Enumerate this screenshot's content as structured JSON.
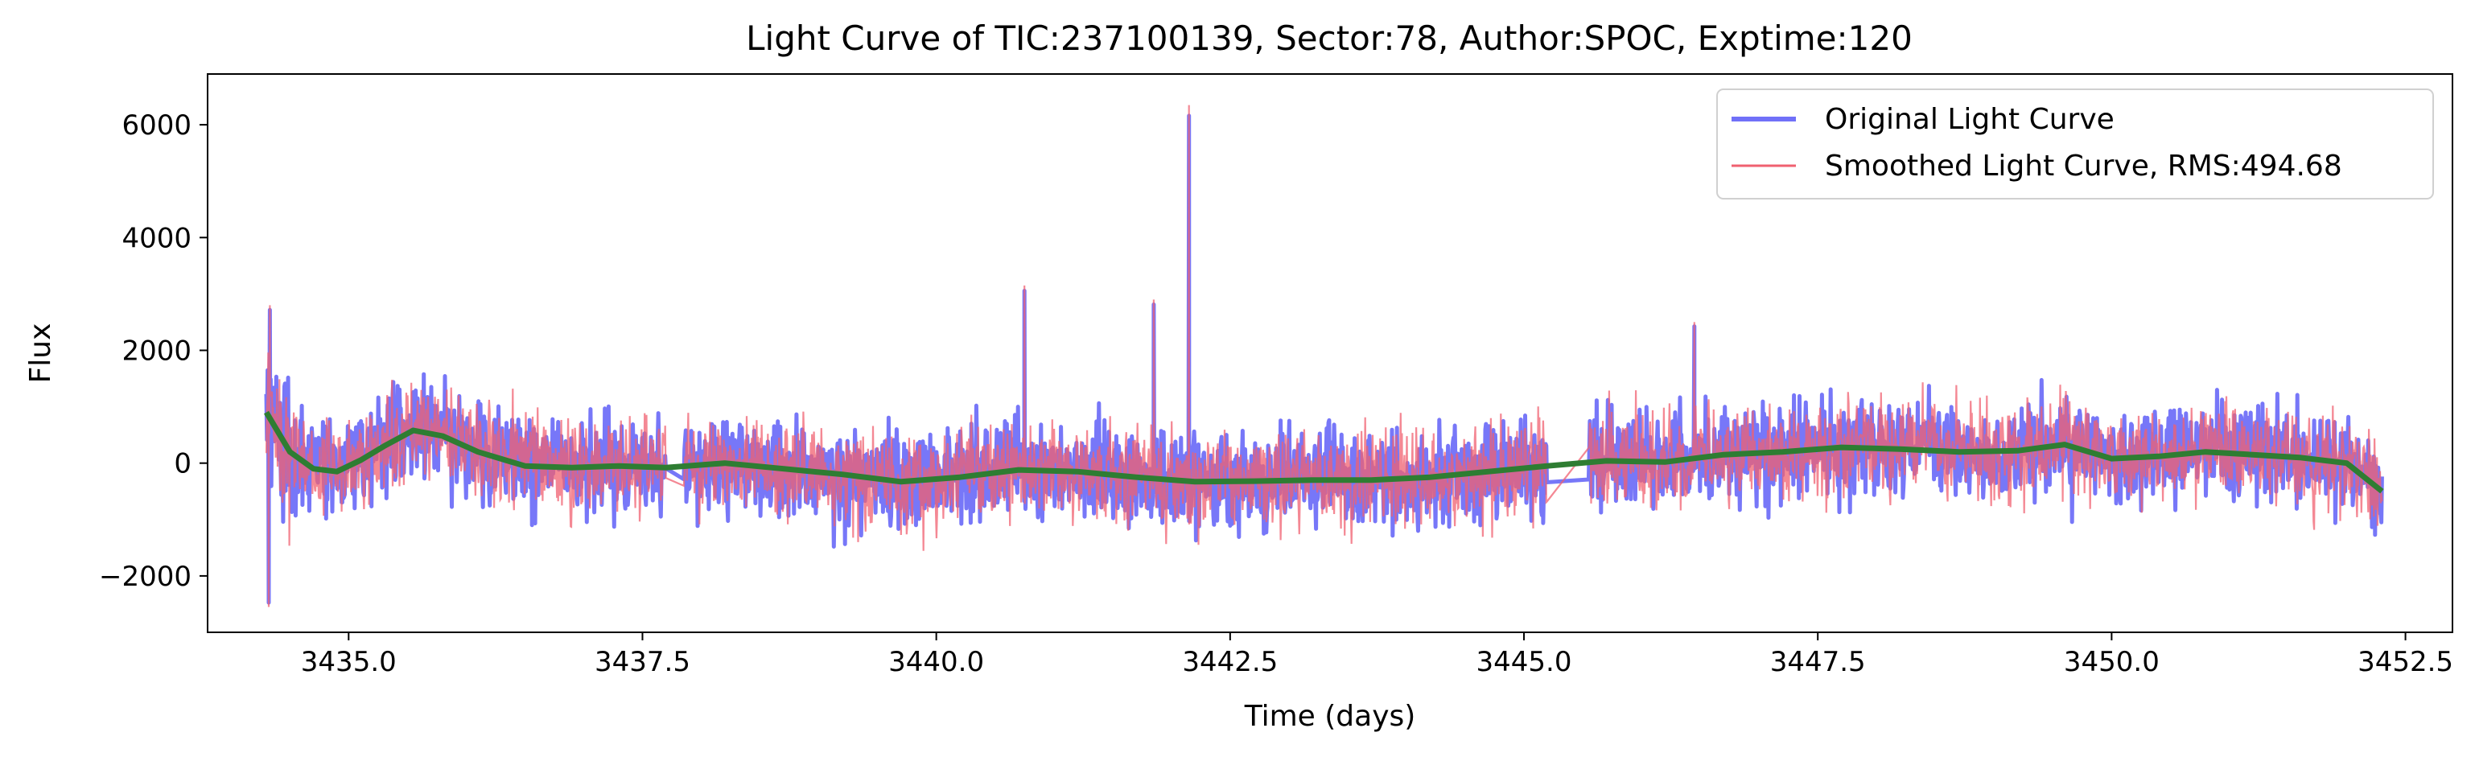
{
  "chart_data": {
    "type": "line",
    "title": "Light Curve of TIC:237100139, Sector:78, Author:SPOC, Exptime:120",
    "xlabel": "Time (days)",
    "ylabel": "Flux",
    "xlim": [
      3433.8,
      3452.9
    ],
    "ylim": [
      -3000,
      6900
    ],
    "x_ticks": [
      3435.0,
      3437.5,
      3440.0,
      3442.5,
      3445.0,
      3447.5,
      3450.0,
      3452.5
    ],
    "x_tick_labels": [
      "3435.0",
      "3437.5",
      "3440.0",
      "3442.5",
      "3445.0",
      "3447.5",
      "3450.0",
      "3452.5"
    ],
    "y_ticks": [
      -2000,
      0,
      2000,
      4000,
      6000
    ],
    "y_tick_labels": [
      "−2000",
      "0",
      "2000",
      "4000",
      "6000"
    ],
    "grid": false,
    "legend_position": "top-right",
    "time_range": [
      3434.3,
      3452.3
    ],
    "data_gaps": [
      [
        3437.7,
        3437.85
      ],
      [
        3445.2,
        3445.55
      ]
    ],
    "series": [
      {
        "name": "Original Light Curve",
        "color": "#7070f8",
        "approx_noise_range": [
          -1800,
          1700
        ]
      },
      {
        "name": "Smoothed Light Curve, RMS:494.68",
        "color": "#f06070",
        "rms": 494.68
      },
      {
        "color": "#2e7d32",
        "trend_x": [
          3434.3,
          3434.5,
          3434.7,
          3434.9,
          3435.1,
          3435.3,
          3435.55,
          3435.8,
          3436.1,
          3436.5,
          3436.9,
          3437.3,
          3437.7,
          3438.2,
          3438.7,
          3439.2,
          3439.7,
          3440.2,
          3440.7,
          3441.2,
          3441.7,
          3442.2,
          3442.7,
          3443.2,
          3443.7,
          3444.2,
          3444.7,
          3445.2,
          3445.7,
          3446.2,
          3446.7,
          3447.2,
          3447.7,
          3448.2,
          3448.7,
          3449.2,
          3449.6,
          3450.0,
          3450.4,
          3450.8,
          3451.2,
          3451.6,
          3452.0,
          3452.3
        ],
        "trend_y": [
          900,
          200,
          -100,
          -150,
          50,
          300,
          580,
          480,
          200,
          -50,
          -80,
          -50,
          -80,
          0,
          -100,
          -200,
          -330,
          -250,
          -120,
          -150,
          -250,
          -330,
          -320,
          -300,
          -300,
          -250,
          -150,
          -50,
          40,
          20,
          150,
          200,
          280,
          250,
          200,
          220,
          330,
          80,
          120,
          200,
          150,
          100,
          0,
          -500
        ]
      }
    ],
    "spikes": [
      {
        "x": 3434.33,
        "y": 2800
      },
      {
        "x": 3440.75,
        "y": 3150
      },
      {
        "x": 3441.85,
        "y": 2900
      },
      {
        "x": 3442.15,
        "y": 6350
      },
      {
        "x": 3446.45,
        "y": 2500
      },
      {
        "x": 3434.32,
        "y": -2550
      }
    ]
  }
}
